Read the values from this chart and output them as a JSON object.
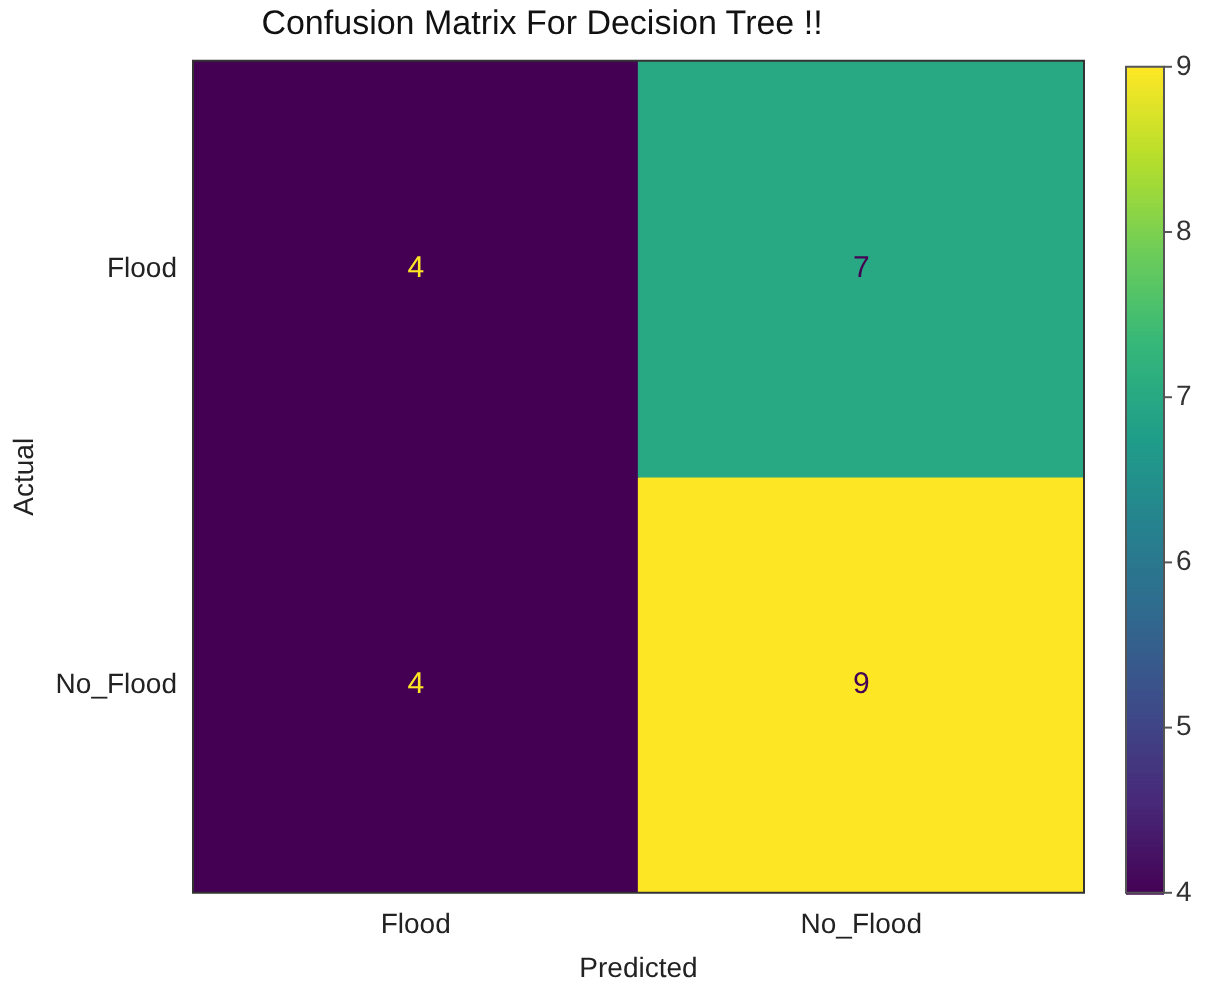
{
  "chart_data": {
    "type": "heatmap",
    "title": "Confusion Matrix For Decision Tree !!",
    "xlabel": "Predicted",
    "ylabel": "Actual",
    "categories": [
      "Flood",
      "No_Flood"
    ],
    "y_categories": [
      "Flood",
      "No_Flood"
    ],
    "cells": [
      [
        4,
        7
      ],
      [
        4,
        9
      ]
    ],
    "clim": [
      4,
      9
    ],
    "cticks": [
      4,
      5,
      6,
      7,
      8,
      9
    ],
    "data_labels": true
  }
}
